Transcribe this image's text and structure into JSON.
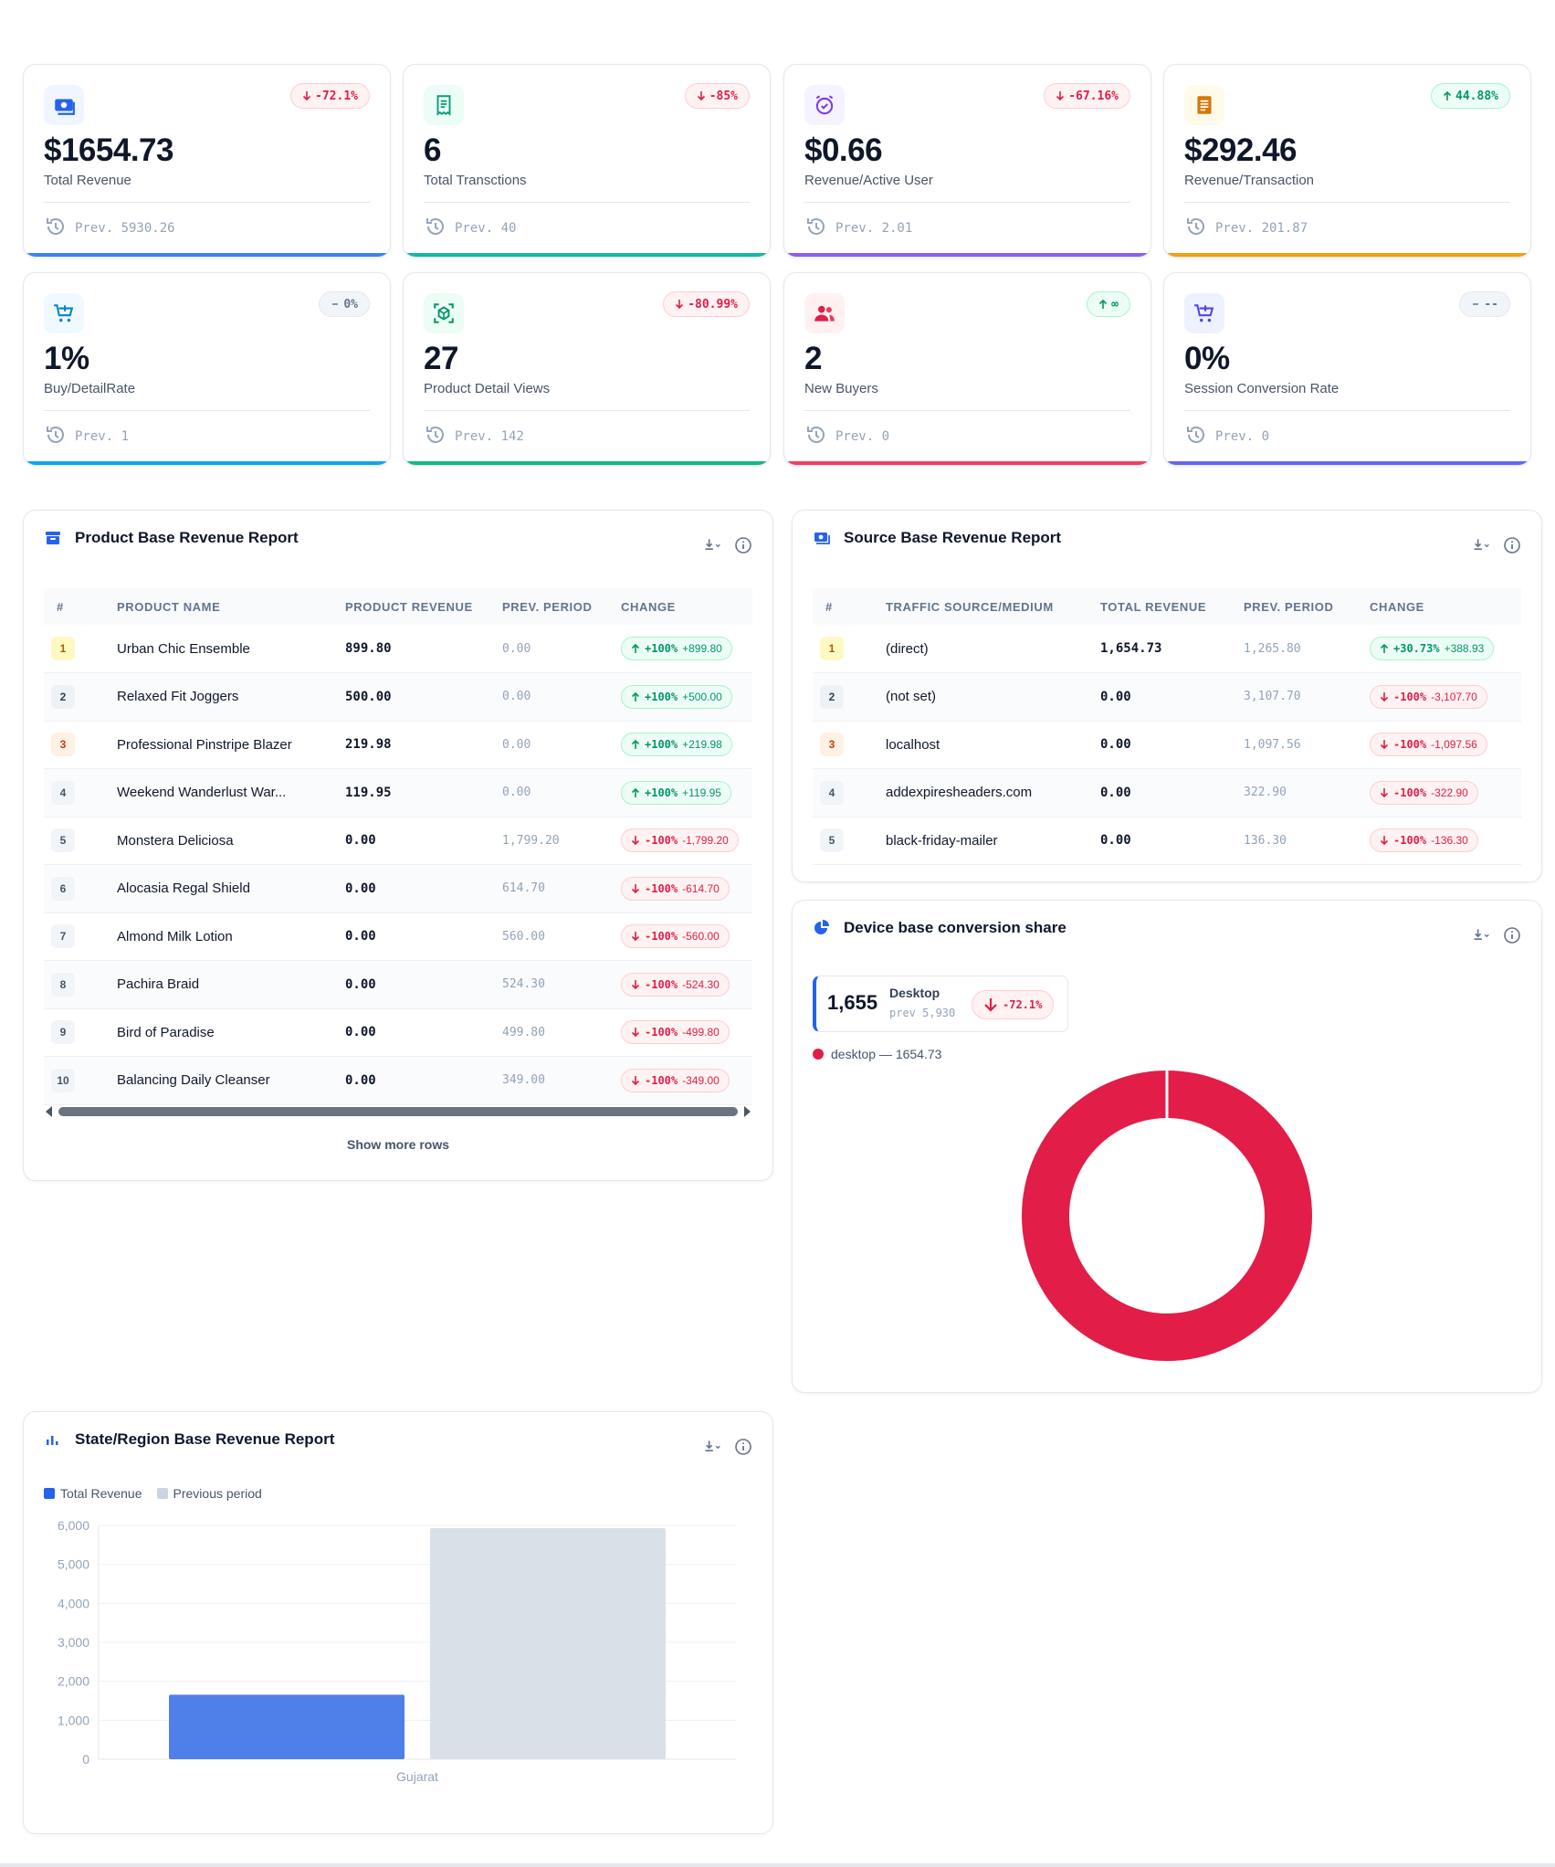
{
  "kpis": [
    {
      "icon": "cash-icon",
      "value": "$1654.73",
      "label": "Total Revenue",
      "badge": "-72.1%",
      "trend": "down",
      "prev": "Prev. 5930.26",
      "color": "#3b82f6",
      "bg": "#eff6ff",
      "accent": "#2563eb"
    },
    {
      "icon": "receipt-icon",
      "value": "6",
      "label": "Total Transctions",
      "badge": "-85%",
      "trend": "down",
      "prev": "Prev. 40",
      "color": "#14b8a6",
      "bg": "#ecfdf5",
      "accent": "#0f9d7a"
    },
    {
      "icon": "alarm-clock-icon",
      "value": "$0.66",
      "label": "Revenue/Active User",
      "badge": "-67.16%",
      "trend": "down",
      "prev": "Prev. 2.01",
      "color": "#8b5cf6",
      "bg": "#f5f3ff",
      "accent": "#7c3aed"
    },
    {
      "icon": "document-icon",
      "value": "$292.46",
      "label": "Revenue/Transaction",
      "badge": "44.88%",
      "trend": "up",
      "prev": "Prev. 201.87",
      "color": "#f59e0b",
      "bg": "#fffbeb",
      "accent": "#d97706"
    },
    {
      "icon": "cart-add-icon",
      "value": "1%",
      "label": "Buy/DetailRate",
      "badge": "0%",
      "trend": "flat",
      "prev": "Prev. 1",
      "color": "#0ea5e9",
      "bg": "#f0f9ff",
      "accent": "#0284c7"
    },
    {
      "icon": "box-scan-icon",
      "value": "27",
      "label": "Product Detail Views",
      "badge": "-80.99%",
      "trend": "down",
      "prev": "Prev. 142",
      "color": "#10b981",
      "bg": "#ecfdf5",
      "accent": "#059669"
    },
    {
      "icon": "users-icon",
      "value": "2",
      "label": "New Buyers",
      "badge": "∞",
      "trend": "up",
      "prev": "Prev. 0",
      "color": "#f43f5e",
      "bg": "#fff1f2",
      "accent": "#e11d48"
    },
    {
      "icon": "cart-add-icon",
      "value": "0%",
      "label": "Session Conversion Rate",
      "badge": "--",
      "trend": "flat",
      "prev": "Prev. 0",
      "color": "#6366f1",
      "bg": "#eef2ff",
      "accent": "#4f46e5"
    }
  ],
  "product_report": {
    "title": "Product Base Revenue Report",
    "columns": [
      "#",
      "PRODUCT NAME",
      "PRODUCT REVENUE",
      "PREV. PERIOD",
      "CHANGE"
    ],
    "rows": [
      {
        "rank": "1",
        "name": "Urban Chic Ensemble",
        "revenue": "899.80",
        "prev": "0.00",
        "pct": "+100%",
        "delta": "+899.80",
        "trend": "up"
      },
      {
        "rank": "2",
        "name": "Relaxed Fit Joggers",
        "revenue": "500.00",
        "prev": "0.00",
        "pct": "+100%",
        "delta": "+500.00",
        "trend": "up"
      },
      {
        "rank": "3",
        "name": "Professional Pinstripe Blazer",
        "revenue": "219.98",
        "prev": "0.00",
        "pct": "+100%",
        "delta": "+219.98",
        "trend": "up"
      },
      {
        "rank": "4",
        "name": "Weekend Wanderlust War...",
        "revenue": "119.95",
        "prev": "0.00",
        "pct": "+100%",
        "delta": "+119.95",
        "trend": "up"
      },
      {
        "rank": "5",
        "name": "Monstera Deliciosa",
        "revenue": "0.00",
        "prev": "1,799.20",
        "pct": "-100%",
        "delta": "-1,799.20",
        "trend": "down"
      },
      {
        "rank": "6",
        "name": "Alocasia Regal Shield",
        "revenue": "0.00",
        "prev": "614.70",
        "pct": "-100%",
        "delta": "-614.70",
        "trend": "down"
      },
      {
        "rank": "7",
        "name": "Almond Milk Lotion",
        "revenue": "0.00",
        "prev": "560.00",
        "pct": "-100%",
        "delta": "-560.00",
        "trend": "down"
      },
      {
        "rank": "8",
        "name": "Pachira Braid",
        "revenue": "0.00",
        "prev": "524.30",
        "pct": "-100%",
        "delta": "-524.30",
        "trend": "down"
      },
      {
        "rank": "9",
        "name": "Bird of Paradise",
        "revenue": "0.00",
        "prev": "499.80",
        "pct": "-100%",
        "delta": "-499.80",
        "trend": "down"
      },
      {
        "rank": "10",
        "name": "Balancing Daily Cleanser",
        "revenue": "0.00",
        "prev": "349.00",
        "pct": "-100%",
        "delta": "-349.00",
        "trend": "down"
      }
    ],
    "show_more": "Show more rows"
  },
  "source_report": {
    "title": "Source Base Revenue Report",
    "columns": [
      "#",
      "TRAFFIC SOURCE/MEDIUM",
      "TOTAL REVENUE",
      "PREV. PERIOD",
      "CHANGE"
    ],
    "rows": [
      {
        "rank": "1",
        "name": "(direct)",
        "revenue": "1,654.73",
        "prev": "1,265.80",
        "pct": "+30.73%",
        "delta": "+388.93",
        "trend": "up"
      },
      {
        "rank": "2",
        "name": "(not set)",
        "revenue": "0.00",
        "prev": "3,107.70",
        "pct": "-100%",
        "delta": "-3,107.70",
        "trend": "down"
      },
      {
        "rank": "3",
        "name": "localhost",
        "revenue": "0.00",
        "prev": "1,097.56",
        "pct": "-100%",
        "delta": "-1,097.56",
        "trend": "down"
      },
      {
        "rank": "4",
        "name": "addexpiresheaders.com",
        "revenue": "0.00",
        "prev": "322.90",
        "pct": "-100%",
        "delta": "-322.90",
        "trend": "down"
      },
      {
        "rank": "5",
        "name": "black-friday-mailer",
        "revenue": "0.00",
        "prev": "136.30",
        "pct": "-100%",
        "delta": "-136.30",
        "trend": "down"
      }
    ]
  },
  "device_share": {
    "title": "Device base conversion share",
    "stat_value": "1,655",
    "stat_label": "Desktop",
    "stat_prev": "prev 5,930",
    "stat_change": "-72.1%",
    "legend": "desktop — 1654.73",
    "color": "#e11d48"
  },
  "chart_data": {
    "type": "bar",
    "title": "State/Region Base Revenue Report",
    "categories": [
      "Gujarat"
    ],
    "series": [
      {
        "name": "Total Revenue",
        "values": [
          1654.73
        ],
        "color": "#4f7fe8"
      },
      {
        "name": "Previous period",
        "values": [
          5930.26
        ],
        "color": "#d9e0e8"
      }
    ],
    "yticks": [
      "6,000",
      "5,000",
      "4,000",
      "3,000",
      "2,000",
      "1,000",
      "0"
    ],
    "ylim": [
      0,
      6000
    ],
    "grid": true,
    "legend": "top-left"
  }
}
